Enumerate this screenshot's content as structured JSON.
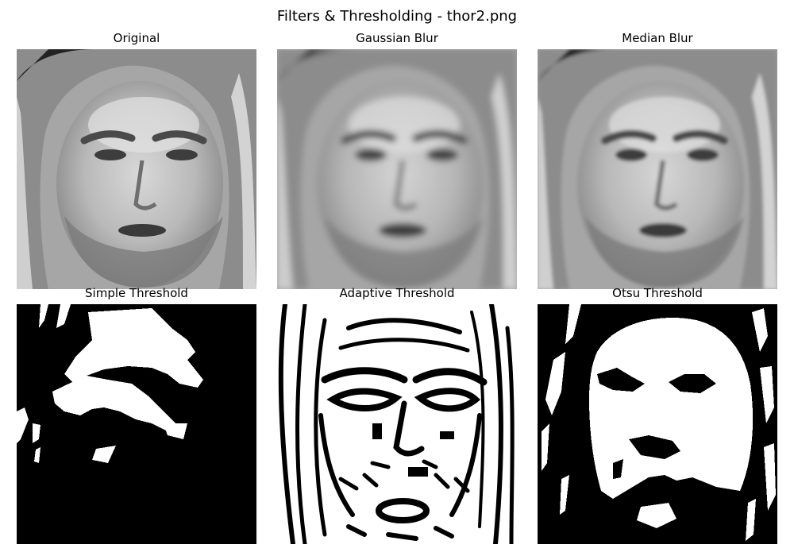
{
  "figure": {
    "title": "Filters & Thresholding - thor2.png"
  },
  "panels": [
    {
      "title": "Original",
      "kind": "grayscale",
      "content": "portrait photo"
    },
    {
      "title": "Gaussian Blur",
      "kind": "grayscale-blurred",
      "content": "portrait photo"
    },
    {
      "title": "Median Blur",
      "kind": "grayscale-median",
      "content": "portrait photo"
    },
    {
      "title": "Simple Threshold",
      "kind": "binary",
      "content": "thresholded portrait"
    },
    {
      "title": "Adaptive Threshold",
      "kind": "binary-edges",
      "content": "thresholded portrait"
    },
    {
      "title": "Otsu Threshold",
      "kind": "binary",
      "content": "thresholded portrait"
    }
  ],
  "colors": {
    "background": "#ffffff",
    "text": "#000000",
    "binary_on": "#ffffff",
    "binary_off": "#000000"
  }
}
